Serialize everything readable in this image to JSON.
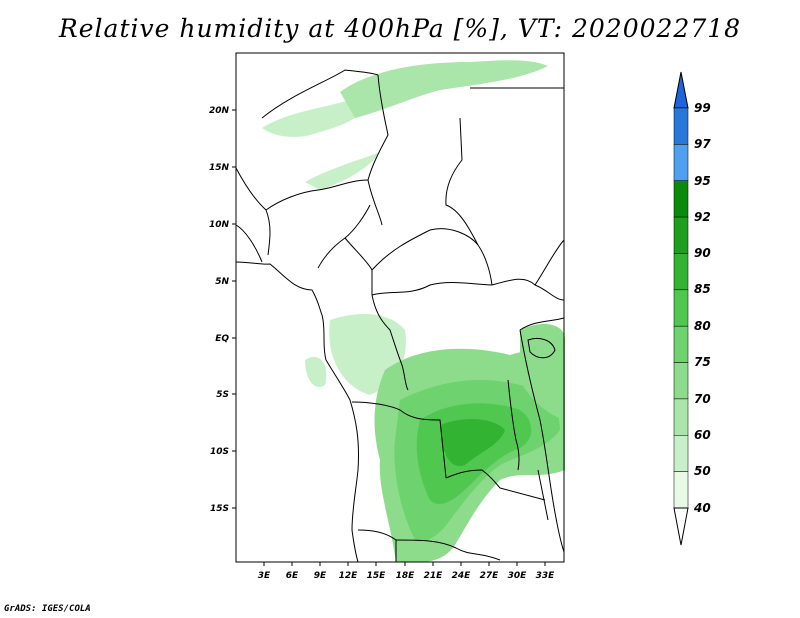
{
  "title": "Relative humidity at 400hPa [%], VT: 2020022718",
  "credit": "GrADS: IGES/COLA",
  "lat_labels": [
    "20N",
    "15N",
    "10N",
    "5N",
    "EQ",
    "5S",
    "10S",
    "15S"
  ],
  "lon_labels": [
    "3E",
    "6E",
    "9E",
    "12E",
    "15E",
    "18E",
    "21E",
    "24E",
    "27E",
    "30E",
    "33E"
  ],
  "colorbar": {
    "levels": [
      "99",
      "97",
      "95",
      "92",
      "90",
      "85",
      "80",
      "75",
      "70",
      "60",
      "50",
      "40"
    ],
    "colors": [
      "#1e64dc",
      "#2878dc",
      "#50a0f0",
      "#0a8c0a",
      "#1ea01e",
      "#32b432",
      "#50c850",
      "#6ed26e",
      "#8cdc8c",
      "#aae6aa",
      "#c8f0c8",
      "#e6fae6"
    ]
  },
  "map_colors": {
    "coast": "#000000",
    "rh_light": "#c8f0c8",
    "rh_med": "#8cdc8c",
    "rh_strong": "#50c850",
    "rh_dark": "#32b432"
  }
}
